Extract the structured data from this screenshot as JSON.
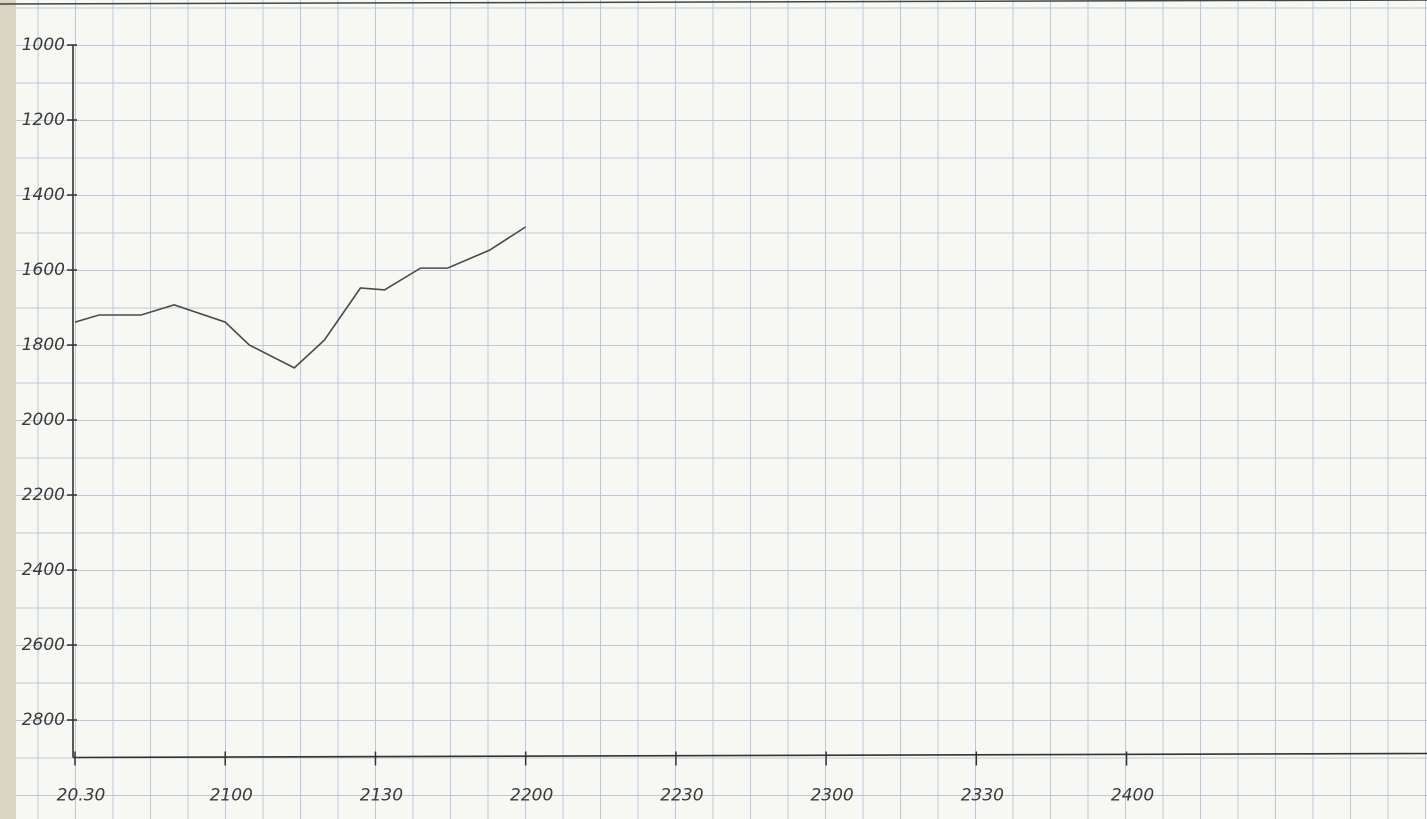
{
  "chart_data": {
    "type": "line",
    "x": [
      20.5,
      20.58,
      20.72,
      20.83,
      21.0,
      21.08,
      21.23,
      21.33,
      21.45,
      21.53,
      21.65,
      21.74,
      21.88,
      22.0
    ],
    "series": [
      {
        "color": "#4a4a4a",
        "values": [
          1739,
          1720,
          1720,
          1693,
          1739,
          1800,
          1861,
          1787,
          1648,
          1653,
          1595,
          1595,
          1547,
          1485
        ]
      }
    ],
    "xlim": [
      20.5,
      25
    ],
    "xticks": [
      {
        "value": 20.5,
        "label": "20.30"
      },
      {
        "value": 21,
        "label": "2100"
      },
      {
        "value": 21.5,
        "label": "2130"
      },
      {
        "value": 22,
        "label": "2200"
      },
      {
        "value": 22.5,
        "label": "2230"
      },
      {
        "value": 23,
        "label": "2300"
      },
      {
        "value": 23.5,
        "label": "2330"
      },
      {
        "value": 24,
        "label": "2400"
      }
    ],
    "ylim": [
      1000,
      2900
    ],
    "yticks": [
      1000,
      1200,
      1400,
      1600,
      1800,
      2000,
      2200,
      2400,
      2600,
      2800
    ],
    "y_inverted": true
  }
}
